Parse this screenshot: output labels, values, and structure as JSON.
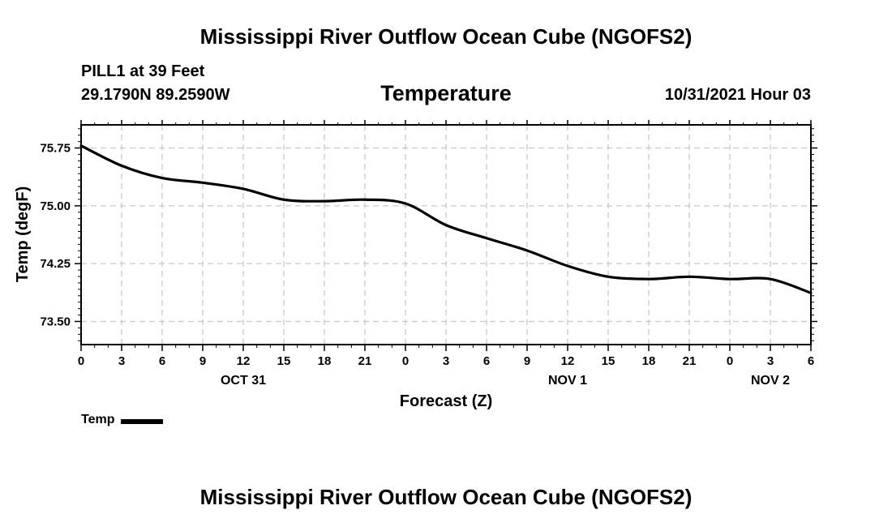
{
  "header": {
    "title": "Mississippi River Outflow Ocean Cube (NGOFS2)",
    "station": "PILL1 at 39 Feet",
    "coords": "29.1790N  89.2590W",
    "datetime": "10/31/2021 Hour 03"
  },
  "footer": {
    "title": "Mississippi River Outflow Ocean Cube (NGOFS2)"
  },
  "legend": {
    "label": "Temp"
  },
  "chart_data": {
    "type": "line",
    "title": "Temperature",
    "xlabel": "Forecast (Z)",
    "ylabel": "Temp (degF)",
    "xlim": [
      0,
      54
    ],
    "ylim": [
      73.2,
      76.05
    ],
    "yticks": [
      75.75,
      75.0,
      74.25,
      73.5
    ],
    "yticklabels": [
      "75.75",
      "75.00",
      "74.25",
      "73.50"
    ],
    "xticks": [
      0,
      3,
      6,
      9,
      12,
      15,
      18,
      21,
      24,
      27,
      30,
      33,
      36,
      39,
      42,
      45,
      48,
      51,
      54
    ],
    "xticklabels": [
      "0",
      "3",
      "6",
      "9",
      "12",
      "15",
      "18",
      "21",
      "0",
      "3",
      "6",
      "9",
      "12",
      "15",
      "18",
      "21",
      "0",
      "3",
      "6"
    ],
    "day_labels": [
      {
        "x": 12,
        "label": "OCT 31"
      },
      {
        "x": 36,
        "label": "NOV 1"
      },
      {
        "x": 51,
        "label": "NOV 2"
      }
    ],
    "grid": true,
    "legend_position": "bottom-left",
    "series": [
      {
        "name": "Temp",
        "color": "#000000",
        "x": [
          0,
          3,
          6,
          9,
          12,
          15,
          18,
          21,
          24,
          27,
          30,
          33,
          36,
          39,
          42,
          45,
          48,
          51,
          54
        ],
        "y": [
          75.78,
          75.52,
          75.36,
          75.3,
          75.22,
          75.08,
          75.06,
          75.08,
          75.03,
          74.75,
          74.58,
          74.42,
          74.22,
          74.08,
          74.05,
          74.08,
          74.05,
          74.05,
          73.87
        ]
      }
    ]
  }
}
